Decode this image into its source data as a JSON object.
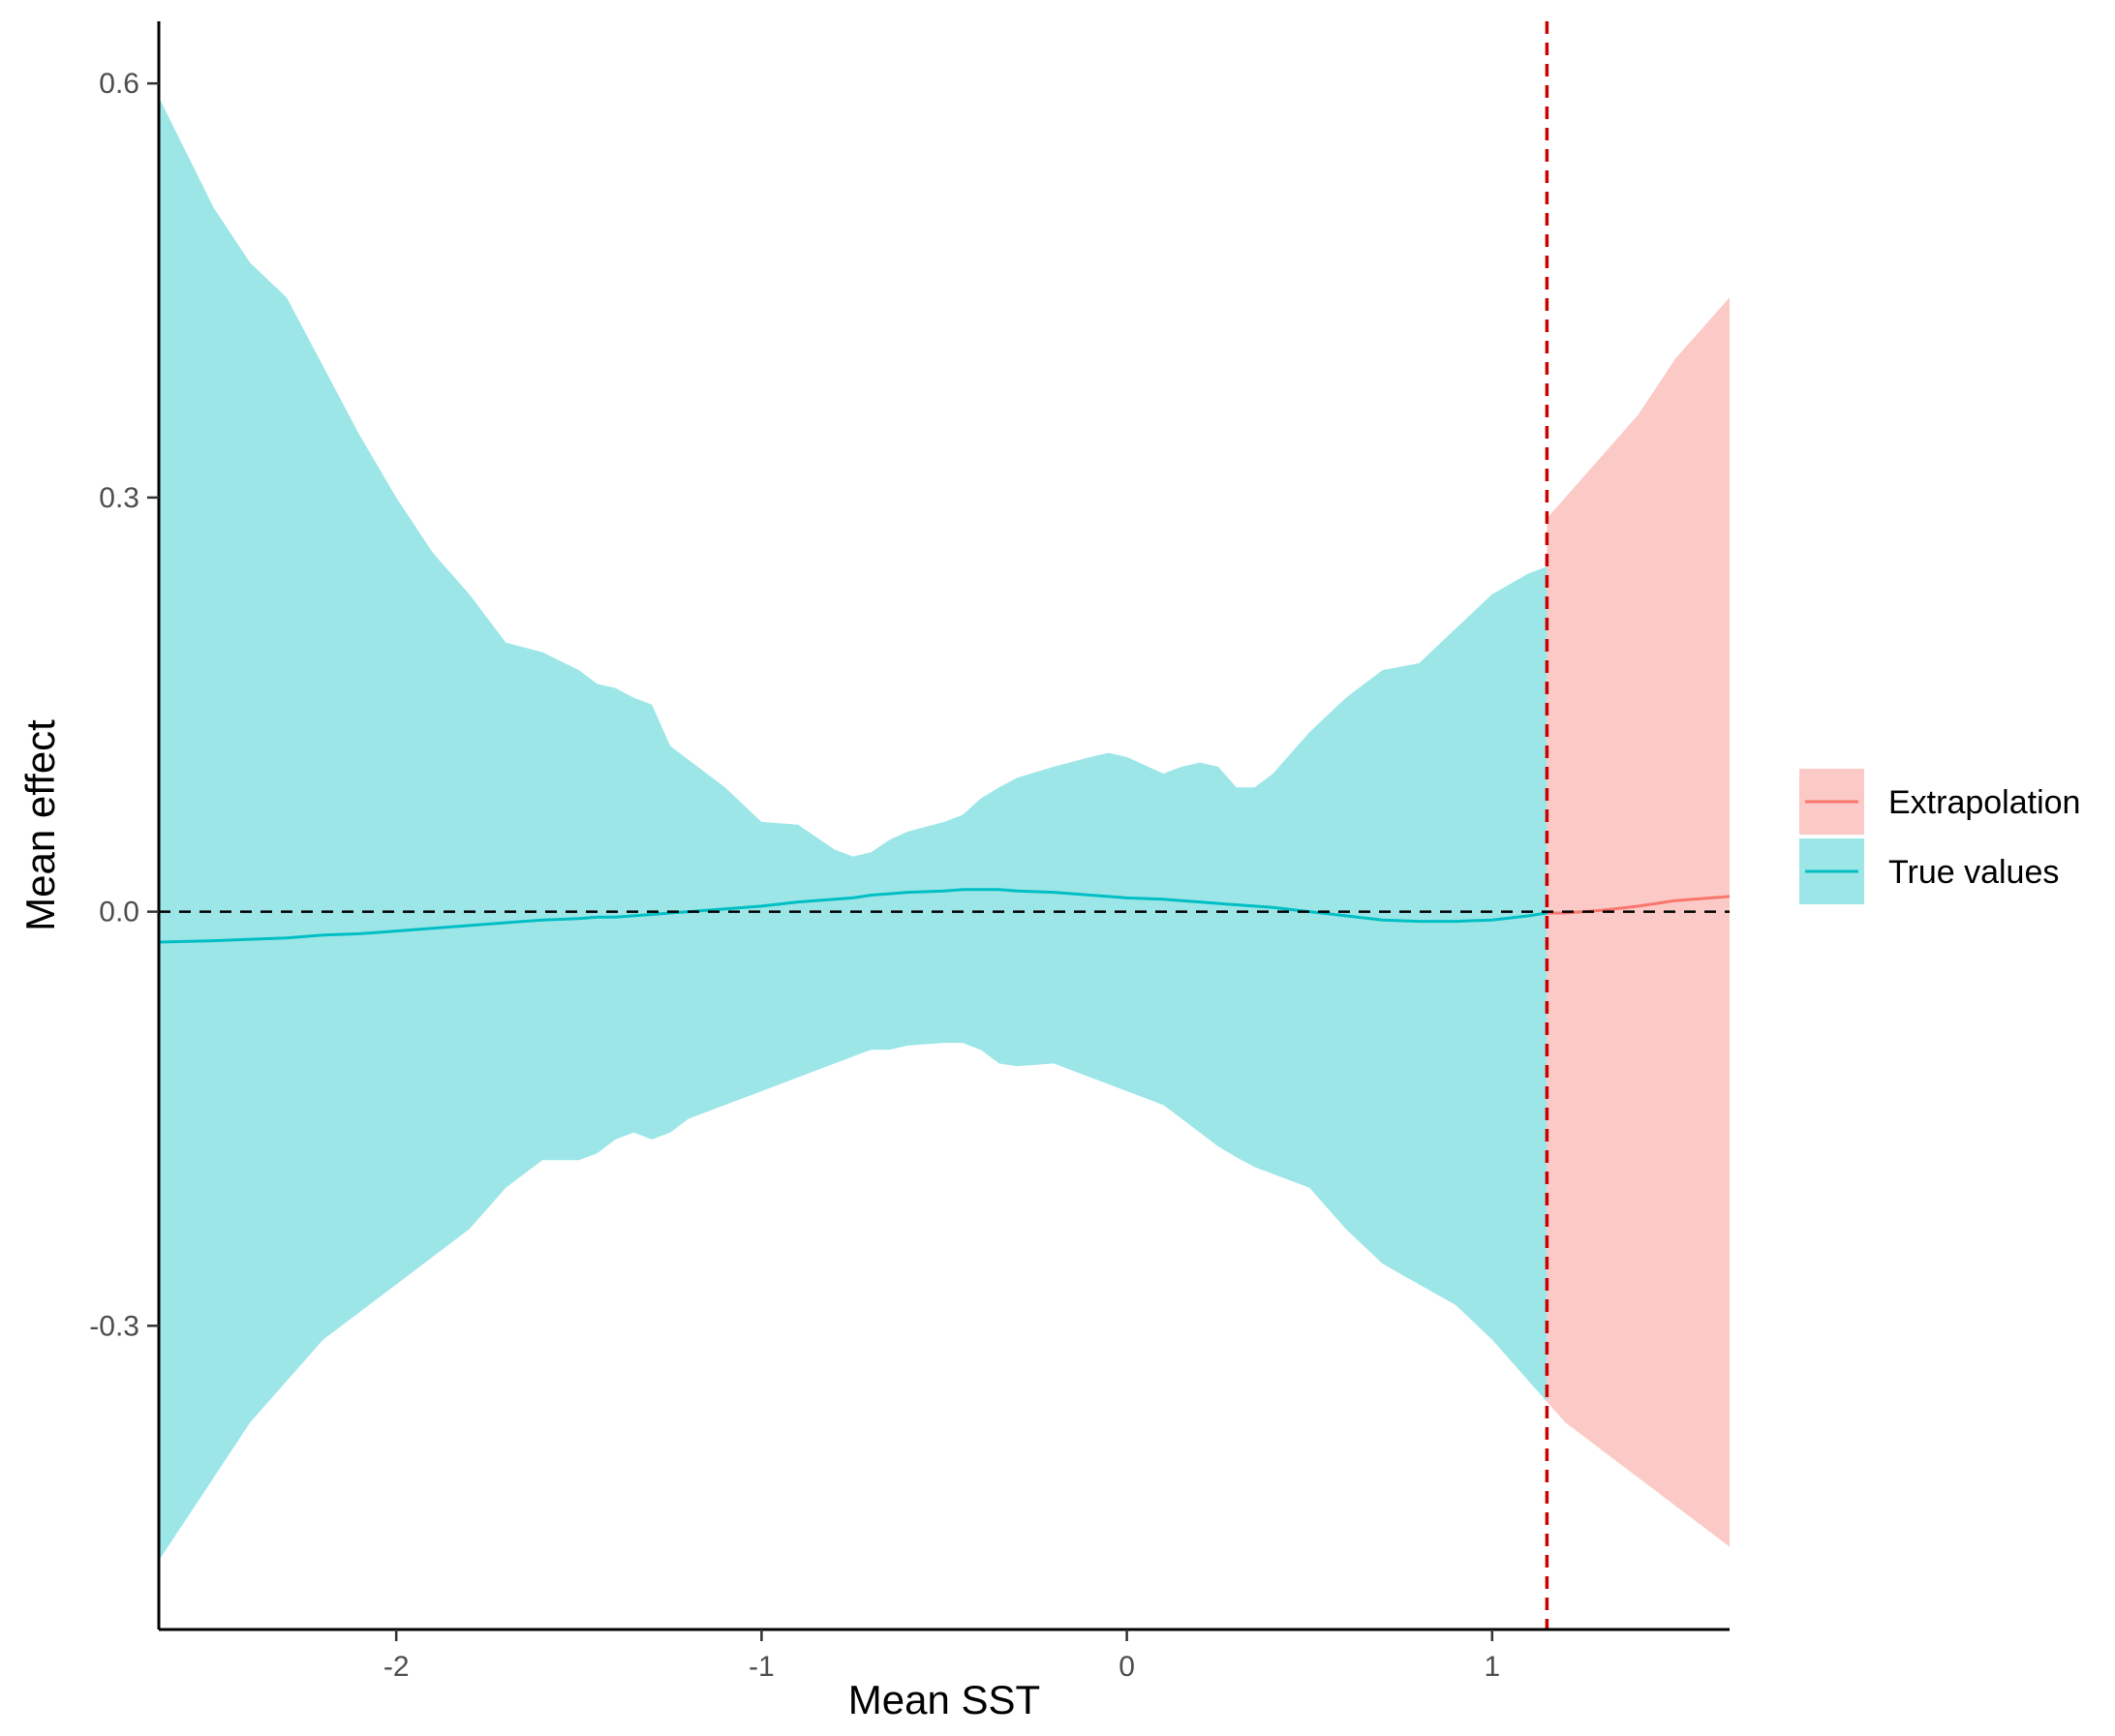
{
  "chart_data": {
    "type": "line",
    "title": "",
    "xlabel": "Mean SST",
    "ylabel": "Mean effect",
    "xlim": [
      -2.65,
      1.65
    ],
    "ylim": [
      -0.52,
      0.645
    ],
    "x_ticks": [
      -2,
      -1,
      0,
      1
    ],
    "x_tick_labels": [
      "-2",
      "-1",
      "0",
      "1"
    ],
    "y_ticks": [
      -0.3,
      0.0,
      0.3,
      0.6
    ],
    "y_tick_labels": [
      "-0.3",
      "0.0",
      "0.3",
      "0.6"
    ],
    "grid": false,
    "legend_position": "right",
    "threshold_x": 1.15,
    "reference_y": 0.0,
    "colors": {
      "extrapolation_line": "#F8766D",
      "extrapolation_fill": "#F8766D",
      "true_line": "#00BFC4",
      "true_fill": "#00BFC4",
      "threshold_line": "#CC0000",
      "reference_line": "#000000",
      "axis": "#000000"
    },
    "series": [
      {
        "name": "True values",
        "x": [
          -2.65,
          -2.5,
          -2.4,
          -2.3,
          -2.2,
          -2.1,
          -2.0,
          -1.9,
          -1.8,
          -1.7,
          -1.6,
          -1.5,
          -1.45,
          -1.4,
          -1.35,
          -1.3,
          -1.25,
          -1.2,
          -1.1,
          -1.0,
          -0.9,
          -0.8,
          -0.75,
          -0.7,
          -0.65,
          -0.6,
          -0.5,
          -0.45,
          -0.4,
          -0.35,
          -0.3,
          -0.2,
          -0.1,
          -0.05,
          0.0,
          0.1,
          0.15,
          0.2,
          0.25,
          0.3,
          0.35,
          0.4,
          0.5,
          0.6,
          0.7,
          0.8,
          0.9,
          1.0,
          1.1,
          1.15
        ],
        "mean": [
          -0.022,
          -0.021,
          -0.02,
          -0.019,
          -0.017,
          -0.016,
          -0.014,
          -0.012,
          -0.01,
          -0.008,
          -0.006,
          -0.005,
          -0.004,
          -0.004,
          -0.003,
          -0.002,
          -0.001,
          0.0,
          0.002,
          0.004,
          0.007,
          0.009,
          0.01,
          0.012,
          0.013,
          0.014,
          0.015,
          0.016,
          0.016,
          0.016,
          0.015,
          0.014,
          0.012,
          0.011,
          0.01,
          0.009,
          0.008,
          0.007,
          0.006,
          0.005,
          0.004,
          0.003,
          0.0,
          -0.003,
          -0.006,
          -0.007,
          -0.007,
          -0.006,
          -0.003,
          -0.001
        ],
        "upper": [
          0.59,
          0.51,
          0.47,
          0.445,
          0.395,
          0.345,
          0.3,
          0.26,
          0.23,
          0.195,
          0.188,
          0.175,
          0.165,
          0.162,
          0.155,
          0.15,
          0.12,
          0.11,
          0.09,
          0.065,
          0.063,
          0.045,
          0.04,
          0.043,
          0.052,
          0.058,
          0.065,
          0.07,
          0.082,
          0.09,
          0.097,
          0.105,
          0.112,
          0.115,
          0.112,
          0.1,
          0.105,
          0.108,
          0.105,
          0.09,
          0.09,
          0.1,
          0.13,
          0.155,
          0.175,
          0.18,
          0.205,
          0.23,
          0.245,
          0.25
        ],
        "lower": [
          -0.47,
          -0.41,
          -0.37,
          -0.34,
          -0.31,
          -0.29,
          -0.27,
          -0.25,
          -0.23,
          -0.2,
          -0.18,
          -0.18,
          -0.175,
          -0.165,
          -0.16,
          -0.165,
          -0.16,
          -0.15,
          -0.14,
          -0.13,
          -0.12,
          -0.11,
          -0.105,
          -0.1,
          -0.1,
          -0.097,
          -0.095,
          -0.095,
          -0.1,
          -0.11,
          -0.112,
          -0.11,
          -0.12,
          -0.125,
          -0.13,
          -0.14,
          -0.15,
          -0.16,
          -0.17,
          -0.178,
          -0.185,
          -0.19,
          -0.2,
          -0.23,
          -0.255,
          -0.27,
          -0.285,
          -0.31,
          -0.34,
          -0.355
        ]
      },
      {
        "name": "Extrapolation",
        "x": [
          1.15,
          1.2,
          1.3,
          1.4,
          1.45,
          1.5,
          1.6,
          1.65
        ],
        "mean": [
          -0.001,
          -0.001,
          0.001,
          0.004,
          0.006,
          0.008,
          0.01,
          0.011
        ],
        "upper": [
          0.285,
          0.3,
          0.33,
          0.36,
          0.38,
          0.4,
          0.43,
          0.445
        ],
        "lower": [
          -0.355,
          -0.37,
          -0.39,
          -0.41,
          -0.42,
          -0.43,
          -0.45,
          -0.46
        ]
      }
    ]
  }
}
